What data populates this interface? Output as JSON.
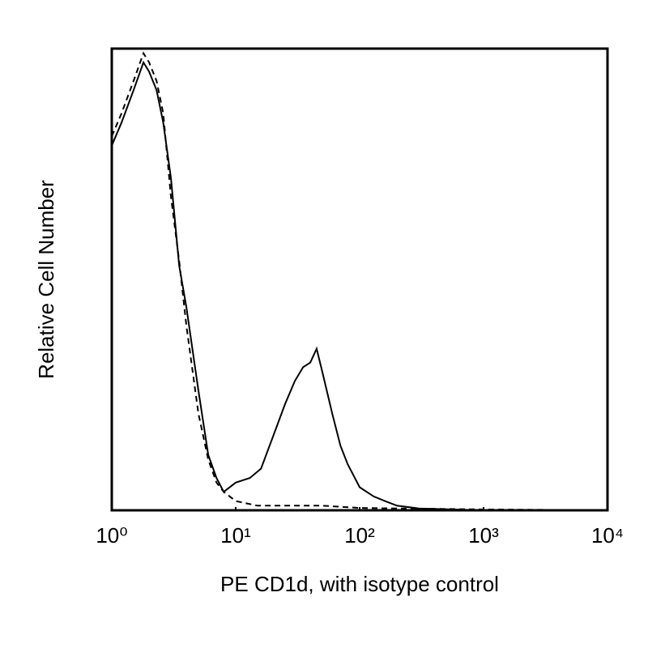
{
  "chart_data": {
    "type": "line",
    "xlabel": "PE CD1d, with isotype control",
    "ylabel": "Relative Cell Number",
    "xscale": "log",
    "xlim": [
      1,
      10000
    ],
    "xticks": [
      {
        "value": 1,
        "label": "10⁰"
      },
      {
        "value": 10,
        "label": "10¹"
      },
      {
        "value": 100,
        "label": "10²"
      },
      {
        "value": 1000,
        "label": "10³"
      },
      {
        "value": 10000,
        "label": "10⁴"
      }
    ],
    "ylim": [
      0,
      100
    ],
    "series": [
      {
        "color": "#000000",
        "style": "solid",
        "x": [
          1,
          1.2,
          1.5,
          1.8,
          2,
          2.3,
          2.6,
          3,
          3.5,
          4,
          5,
          6,
          7,
          8,
          10,
          13,
          16,
          20,
          25,
          30,
          35,
          40,
          45,
          50,
          60,
          70,
          80,
          100,
          130,
          160,
          200,
          300,
          1000,
          10000
        ],
        "values": [
          79,
          84,
          91,
          97,
          95,
          91,
          84,
          72,
          53,
          44,
          26,
          12,
          7,
          4,
          6,
          7,
          9,
          16,
          23,
          28,
          31,
          32,
          35,
          30,
          21,
          14,
          10,
          5,
          3,
          2,
          1,
          0.4,
          0,
          0
        ]
      },
      {
        "color": "#000000",
        "style": "dashed",
        "x": [
          1,
          1.2,
          1.5,
          1.8,
          2,
          2.3,
          2.6,
          3,
          3.5,
          4,
          5,
          6,
          7,
          8,
          10,
          15,
          20,
          30,
          50,
          100,
          200,
          1000,
          10000
        ],
        "values": [
          81,
          86,
          93,
          99,
          97,
          93,
          86,
          68,
          54,
          40,
          21,
          11,
          6,
          4,
          2,
          1,
          1,
          1,
          1,
          0.5,
          0.4,
          0.2,
          0
        ]
      }
    ]
  }
}
